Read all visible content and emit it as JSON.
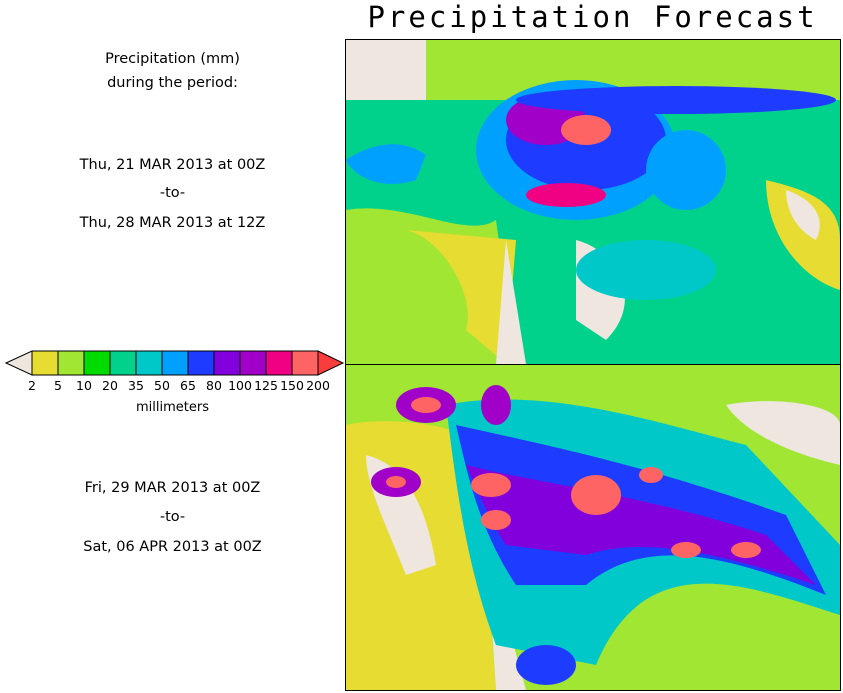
{
  "title": "Precipitation Forecast",
  "legend": {
    "heading_line1": "Precipitation (mm)",
    "heading_line2": "during the period:",
    "ticks": [
      "2",
      "5",
      "10",
      "20",
      "35",
      "50",
      "65",
      "80",
      "100",
      "125",
      "150",
      "200"
    ],
    "units": "millimeters",
    "colors": [
      "#eee6df",
      "#e6dc32",
      "#a0e632",
      "#00dc00",
      "#00d28c",
      "#00c8c8",
      "#00a0ff",
      "#1e3cff",
      "#8200dc",
      "#a000c8",
      "#f00082",
      "#ff6464",
      "#fa3c3c"
    ]
  },
  "periods": [
    {
      "start": "Thu, 21 MAR 2013 at 00Z",
      "sep": "-to-",
      "end": "Thu, 28 MAR 2013 at 12Z"
    },
    {
      "start": "Fri, 29 MAR 2013 at 00Z",
      "sep": "-to-",
      "end": "Sat, 06 APR 2013 at 00Z"
    }
  ]
}
